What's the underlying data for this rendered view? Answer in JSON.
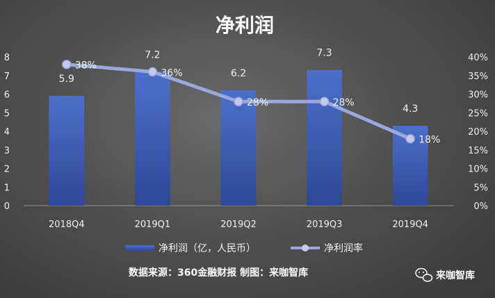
{
  "chart_data": {
    "type": "bar",
    "title": "净利润",
    "categories": [
      "2018Q4",
      "2019Q1",
      "2019Q2",
      "2019Q3",
      "2019Q4"
    ],
    "series": [
      {
        "name": "净利润（亿，人民币）",
        "type": "bar",
        "axis": "left",
        "values": [
          5.9,
          7.2,
          6.2,
          7.3,
          4.3
        ],
        "labels": [
          "5.9",
          "7.2",
          "6.2",
          "7.3",
          "4.3"
        ],
        "color": "#3f5fb8"
      },
      {
        "name": "净利润率",
        "type": "line",
        "axis": "right",
        "values": [
          38,
          36,
          28,
          28,
          18
        ],
        "labels": [
          "38%",
          "36%",
          "28%",
          "28%",
          "18%"
        ],
        "color": "#9aa8dc"
      }
    ],
    "ylim_left": [
      0,
      8
    ],
    "yticks_left": [
      "0",
      "1",
      "2",
      "3",
      "4",
      "5",
      "6",
      "7",
      "8"
    ],
    "ylim_right": [
      0,
      40
    ],
    "yticks_right": [
      "0%",
      "5%",
      "10%",
      "15%",
      "20%",
      "25%",
      "30%",
      "35%",
      "40%"
    ],
    "grid": false,
    "legend": "bottom"
  },
  "footer": {
    "source": "数据来源：360金融财报 制图：来咖智库",
    "brand": "来咖智库",
    "brand_icon": "wechat-icon"
  }
}
